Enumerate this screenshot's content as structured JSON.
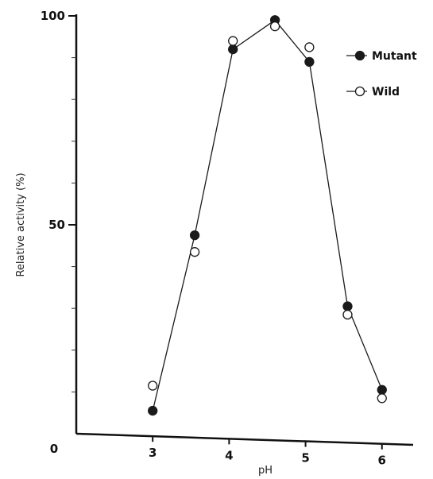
{
  "chart_data": {
    "type": "line",
    "title": "",
    "xlabel": "pH",
    "ylabel": "Relative activity (%)",
    "xlim": [
      2,
      6.2
    ],
    "ylim": [
      0,
      100
    ],
    "x_ticks": [
      3,
      4,
      5,
      6
    ],
    "x_origin_label": "0",
    "y_tick_labels": [
      "50",
      "100"
    ],
    "y_ticks_minor": [
      10,
      20,
      30,
      40,
      60,
      70,
      80,
      90
    ],
    "legend_position": "top-right",
    "series": [
      {
        "name": "Mutant",
        "marker": "filled-circle",
        "x": [
          3.0,
          3.55,
          4.05,
          4.6,
          5.05,
          5.55,
          6.0
        ],
        "y": [
          5.5,
          47.5,
          92,
          99,
          89,
          30.5,
          10.5
        ]
      },
      {
        "name": "Wild",
        "marker": "open-circle",
        "x": [
          3.0,
          3.55,
          4.05,
          4.6,
          5.05,
          5.55,
          6.0
        ],
        "y": [
          11.5,
          43.5,
          94,
          97.5,
          92.5,
          28.5,
          8.5
        ]
      }
    ],
    "line_color": "#1a1a1a"
  }
}
